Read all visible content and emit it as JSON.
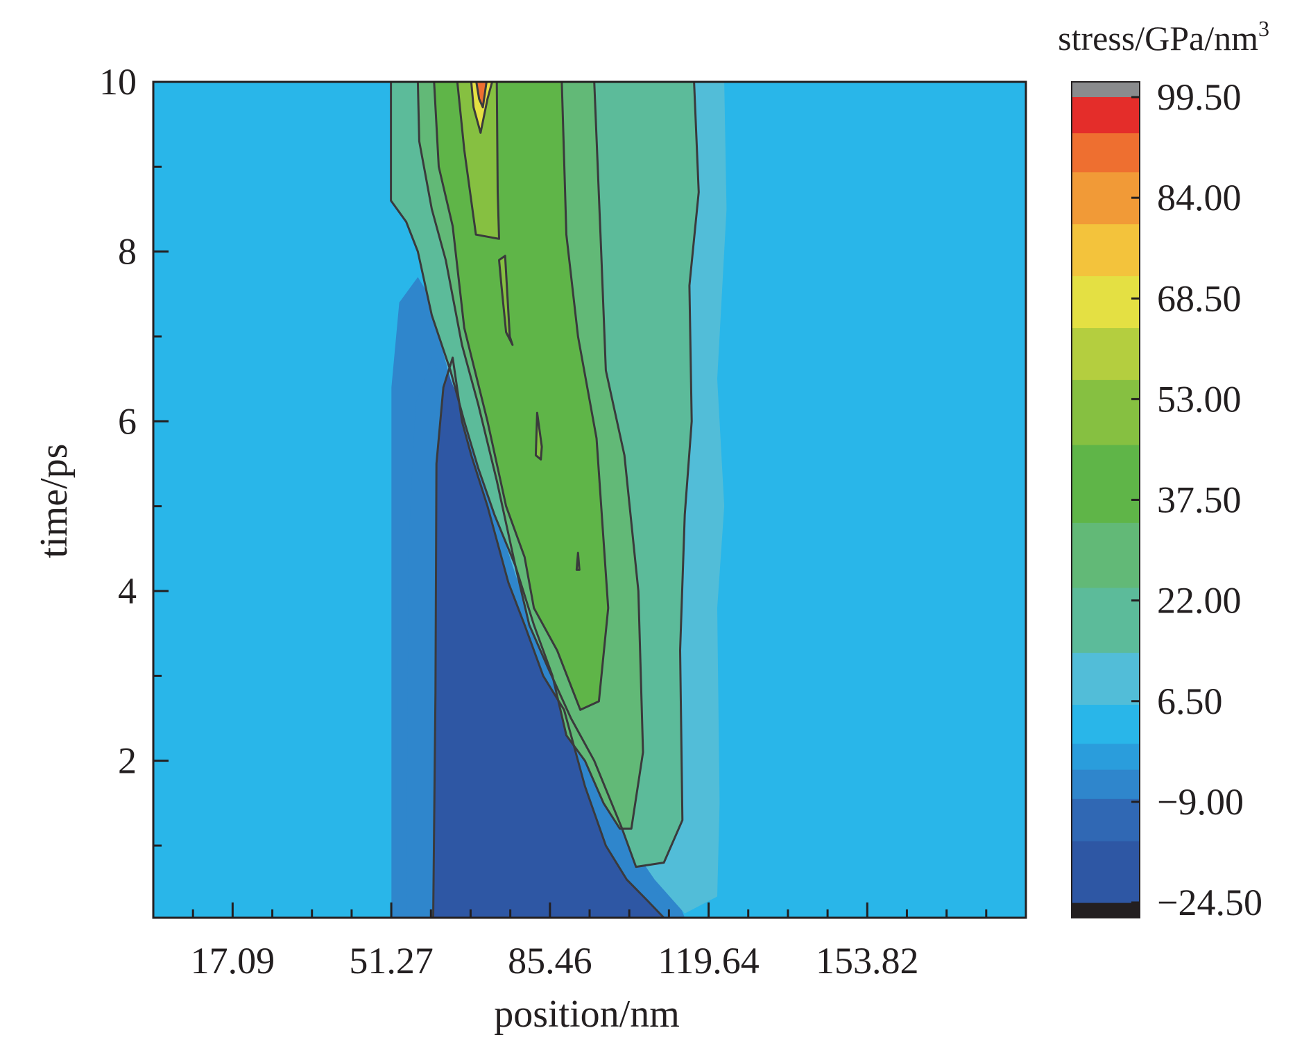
{
  "chart_data": {
    "type": "heatmap",
    "subtype": "filled-contour",
    "title": "",
    "xlabel": "position/nm",
    "ylabel": "time/ps",
    "xlim": [
      0,
      188.0
    ],
    "ylim": [
      0.15,
      10
    ],
    "x_ticks": [
      {
        "value": 17.09,
        "label": "17.09"
      },
      {
        "value": 51.27,
        "label": "51.27"
      },
      {
        "value": 85.46,
        "label": "85.46"
      },
      {
        "value": 119.64,
        "label": "119.64"
      },
      {
        "value": 153.82,
        "label": "153.82"
      }
    ],
    "x_minor_ticks": [
      8.55,
      25.64,
      34.18,
      42.73,
      59.82,
      68.36,
      76.91,
      94.0,
      102.55,
      111.09,
      128.18,
      136.73,
      145.27,
      162.36,
      170.91,
      179.45
    ],
    "y_ticks": [
      {
        "value": 2,
        "label": "2"
      },
      {
        "value": 4,
        "label": "4"
      },
      {
        "value": 6,
        "label": "6"
      },
      {
        "value": 8,
        "label": "8"
      },
      {
        "value": 10,
        "label": "10"
      }
    ],
    "y_minor_ticks": [
      1,
      3,
      5,
      7,
      9
    ],
    "colorbar": {
      "title": "stress/GPa/nm",
      "title_superscript": "3",
      "min": -24.5,
      "max": 99.5,
      "tick_values": [
        99.5,
        84.0,
        68.5,
        53.0,
        37.5,
        22.0,
        6.5,
        -9.0,
        -24.5
      ],
      "tick_labels": [
        "99.50",
        "84.00",
        "68.50",
        "53.00",
        "37.50",
        "22.00",
        "6.50",
        "−9.00",
        "−24.50"
      ],
      "over_color": "#8a8b8d",
      "under_color": "#231f20",
      "bands": [
        {
          "from": -24.5,
          "to": -15.0,
          "color": "#2e57a4"
        },
        {
          "from": -15.0,
          "to": -8.5,
          "color": "#3068b4"
        },
        {
          "from": -8.5,
          "to": -4.0,
          "color": "#2f86cc"
        },
        {
          "from": -4.0,
          "to": 0.0,
          "color": "#2a9ddc"
        },
        {
          "from": 0.0,
          "to": 6.0,
          "color": "#29b6e9"
        },
        {
          "from": 6.0,
          "to": 14.0,
          "color": "#52bdd8"
        },
        {
          "from": 14.0,
          "to": 24.0,
          "color": "#5cbb9a"
        },
        {
          "from": 24.0,
          "to": 34.0,
          "color": "#62b977"
        },
        {
          "from": 34.0,
          "to": 46.0,
          "color": "#5fb548"
        },
        {
          "from": 46.0,
          "to": 56.0,
          "color": "#86c041"
        },
        {
          "from": 56.0,
          "to": 64.0,
          "color": "#b4ce3f"
        },
        {
          "from": 64.0,
          "to": 72.0,
          "color": "#e4e043"
        },
        {
          "from": 72.0,
          "to": 80.0,
          "color": "#f3c33c"
        },
        {
          "from": 80.0,
          "to": 88.0,
          "color": "#f19a37"
        },
        {
          "from": 88.0,
          "to": 94.0,
          "color": "#ee6f30"
        },
        {
          "from": 94.0,
          "to": 99.5,
          "color": "#e42d2a"
        }
      ]
    },
    "background_level": 1.0,
    "contour_line_color": "#3a3a3c",
    "regions": [
      {
        "name": "shadow band",
        "level": -4.0,
        "outline": false,
        "points": [
          [
            51.3,
            0.15
          ],
          [
            51.3,
            6.4
          ],
          [
            53.0,
            7.4
          ],
          [
            57.0,
            7.7
          ],
          [
            62.5,
            7.2
          ],
          [
            67.0,
            6.2
          ],
          [
            73.0,
            5.2
          ],
          [
            80.0,
            4.1
          ],
          [
            88.0,
            3.2
          ],
          [
            95.0,
            2.5
          ],
          [
            102.0,
            1.8
          ],
          [
            108.0,
            1.0
          ],
          [
            112.0,
            0.5
          ],
          [
            114.5,
            0.15
          ]
        ]
      },
      {
        "name": "compression edge",
        "level": -8.0,
        "outline": false,
        "points": [
          [
            54.5,
            0.15
          ],
          [
            55.0,
            4.5
          ],
          [
            56.5,
            6.2
          ],
          [
            60.0,
            6.75
          ],
          [
            63.0,
            6.4
          ],
          [
            67.0,
            5.6
          ],
          [
            74.0,
            4.8
          ],
          [
            81.0,
            3.8
          ],
          [
            88.0,
            3.0
          ],
          [
            94.0,
            2.2
          ],
          [
            100.0,
            1.5
          ],
          [
            105.0,
            0.8
          ],
          [
            109.0,
            0.4
          ],
          [
            112.0,
            0.15
          ]
        ]
      },
      {
        "name": "compression core",
        "level": -20.0,
        "outline": true,
        "points": [
          [
            60.3,
            0.15
          ],
          [
            60.8,
            2.8
          ],
          [
            61.0,
            5.5
          ],
          [
            62.5,
            6.4
          ],
          [
            64.5,
            6.75
          ],
          [
            66.5,
            6.0
          ],
          [
            68.5,
            5.6
          ],
          [
            72.0,
            5.0
          ],
          [
            76.5,
            4.1
          ],
          [
            80.0,
            3.6
          ],
          [
            84.0,
            3.0
          ],
          [
            88.5,
            2.6
          ],
          [
            93.0,
            1.7
          ],
          [
            97.5,
            1.0
          ],
          [
            102.0,
            0.6
          ],
          [
            106.5,
            0.35
          ],
          [
            110.0,
            0.15
          ]
        ]
      },
      {
        "name": "tension halo",
        "level": 9.0,
        "outline": false,
        "points": [
          [
            51.3,
            10
          ],
          [
            51.3,
            8.8
          ],
          [
            54.5,
            8.4
          ],
          [
            57.0,
            8.0
          ],
          [
            60.0,
            7.3
          ],
          [
            64.0,
            6.5
          ],
          [
            69.0,
            5.8
          ],
          [
            75.0,
            4.7
          ],
          [
            81.0,
            3.7
          ],
          [
            88.0,
            2.8
          ],
          [
            96.0,
            1.9
          ],
          [
            103.0,
            1.0
          ],
          [
            108.0,
            0.6
          ],
          [
            114.5,
            0.2
          ],
          [
            121.5,
            0.4
          ],
          [
            122.0,
            1.5
          ],
          [
            121.5,
            3.8
          ],
          [
            123.0,
            5.0
          ],
          [
            121.5,
            6.5
          ],
          [
            123.5,
            8.5
          ],
          [
            123.0,
            10
          ]
        ]
      },
      {
        "name": "tension outer",
        "level": 18.0,
        "outline": true,
        "points": [
          [
            51.2,
            10
          ],
          [
            51.2,
            8.6
          ],
          [
            54.5,
            8.35
          ],
          [
            57.0,
            8.0
          ],
          [
            60.0,
            7.25
          ],
          [
            64.0,
            6.6
          ],
          [
            67.0,
            6.0
          ],
          [
            70.0,
            5.45
          ],
          [
            73.5,
            4.9
          ],
          [
            78.0,
            4.3
          ],
          [
            81.0,
            3.6
          ],
          [
            85.0,
            3.1
          ],
          [
            90.0,
            2.5
          ],
          [
            95.0,
            2.0
          ],
          [
            101.0,
            1.2
          ],
          [
            104.0,
            0.75
          ],
          [
            110.0,
            0.8
          ],
          [
            114.0,
            1.3
          ],
          [
            113.5,
            3.3
          ],
          [
            114.5,
            4.9
          ],
          [
            116.0,
            6.0
          ],
          [
            115.5,
            7.6
          ],
          [
            117.5,
            8.7
          ],
          [
            116.5,
            10
          ]
        ]
      },
      {
        "name": "tension mid",
        "level": 30.0,
        "outline": true,
        "points": [
          [
            57.0,
            10
          ],
          [
            57.3,
            9.3
          ],
          [
            60.0,
            8.5
          ],
          [
            63.0,
            7.9
          ],
          [
            66.5,
            6.9
          ],
          [
            70.0,
            6.2
          ],
          [
            74.0,
            5.3
          ],
          [
            78.0,
            4.3
          ],
          [
            82.0,
            3.6
          ],
          [
            86.0,
            3.0
          ],
          [
            89.0,
            2.3
          ],
          [
            93.0,
            2.0
          ],
          [
            97.0,
            1.5
          ],
          [
            100.5,
            1.2
          ],
          [
            103.0,
            1.2
          ],
          [
            105.5,
            2.1
          ],
          [
            104.5,
            4.0
          ],
          [
            101.5,
            5.6
          ],
          [
            97.5,
            6.6
          ],
          [
            96.5,
            8.0
          ],
          [
            95.0,
            10
          ]
        ]
      },
      {
        "name": "tension inner",
        "level": 40.0,
        "outline": true,
        "points": [
          [
            60.5,
            10
          ],
          [
            61.5,
            9.0
          ],
          [
            64.5,
            8.3
          ],
          [
            67.0,
            7.1
          ],
          [
            72.0,
            6.0
          ],
          [
            76.0,
            5.0
          ],
          [
            80.0,
            4.4
          ],
          [
            82.0,
            3.8
          ],
          [
            87.0,
            3.3
          ],
          [
            92.0,
            2.6
          ],
          [
            96.0,
            2.7
          ],
          [
            98.0,
            3.8
          ],
          [
            95.5,
            5.8
          ],
          [
            91.5,
            7.0
          ],
          [
            89.0,
            8.2
          ],
          [
            88.0,
            10
          ]
        ]
      },
      {
        "name": "tension strong",
        "level": 52.0,
        "outline": true,
        "points": [
          [
            65.5,
            10
          ],
          [
            67.0,
            9.2
          ],
          [
            69.5,
            8.2
          ],
          [
            74.5,
            8.15
          ],
          [
            74.2,
            8.7
          ],
          [
            74.0,
            10
          ]
        ]
      },
      {
        "name": "peak halo",
        "level": 68.0,
        "outline": true,
        "points": [
          [
            68.5,
            10
          ],
          [
            69.0,
            9.7
          ],
          [
            70.5,
            9.4
          ],
          [
            72.0,
            9.8
          ],
          [
            73.0,
            10
          ]
        ]
      },
      {
        "name": "peak",
        "level": 90.0,
        "outline": true,
        "points": [
          [
            69.6,
            10
          ],
          [
            70.2,
            9.8
          ],
          [
            71.0,
            9.7
          ],
          [
            71.8,
            10
          ]
        ]
      },
      {
        "name": "island 1",
        "level": 52.0,
        "outline": true,
        "points": [
          [
            74.5,
            7.9
          ],
          [
            75.8,
            7.95
          ],
          [
            76.8,
            7.0
          ],
          [
            77.4,
            6.9
          ],
          [
            76.0,
            7.05
          ],
          [
            75.0,
            7.6
          ]
        ]
      },
      {
        "name": "island 2",
        "level": 52.0,
        "outline": true,
        "points": [
          [
            82.7,
            6.1
          ],
          [
            83.7,
            5.7
          ],
          [
            83.5,
            5.55
          ],
          [
            82.4,
            5.6
          ]
        ]
      },
      {
        "name": "island 3",
        "level": 52.0,
        "outline": true,
        "points": [
          [
            91.5,
            4.45
          ],
          [
            91.8,
            4.25
          ],
          [
            91.2,
            4.25
          ]
        ]
      }
    ]
  }
}
